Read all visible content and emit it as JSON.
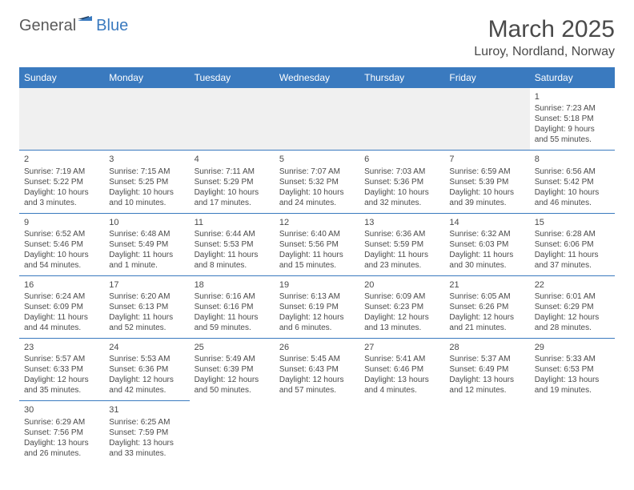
{
  "logo": {
    "part1": "General",
    "part2": "Blue"
  },
  "title": "March 2025",
  "location": "Luroy, Nordland, Norway",
  "colors": {
    "header_bg": "#3a7abf",
    "header_text": "#ffffff",
    "border": "#3a7abf",
    "text": "#4a4a4a",
    "empty_bg": "#f0f0f0",
    "page_bg": "#ffffff"
  },
  "typography": {
    "title_fontsize": 30,
    "location_fontsize": 16,
    "th_fontsize": 12,
    "cell_fontsize": 10,
    "daynum_fontsize": 11
  },
  "columns": [
    "Sunday",
    "Monday",
    "Tuesday",
    "Wednesday",
    "Thursday",
    "Friday",
    "Saturday"
  ],
  "weeks": [
    [
      null,
      null,
      null,
      null,
      null,
      null,
      {
        "day": "1",
        "sunrise": "Sunrise: 7:23 AM",
        "sunset": "Sunset: 5:18 PM",
        "daylight1": "Daylight: 9 hours",
        "daylight2": "and 55 minutes."
      }
    ],
    [
      {
        "day": "2",
        "sunrise": "Sunrise: 7:19 AM",
        "sunset": "Sunset: 5:22 PM",
        "daylight1": "Daylight: 10 hours",
        "daylight2": "and 3 minutes."
      },
      {
        "day": "3",
        "sunrise": "Sunrise: 7:15 AM",
        "sunset": "Sunset: 5:25 PM",
        "daylight1": "Daylight: 10 hours",
        "daylight2": "and 10 minutes."
      },
      {
        "day": "4",
        "sunrise": "Sunrise: 7:11 AM",
        "sunset": "Sunset: 5:29 PM",
        "daylight1": "Daylight: 10 hours",
        "daylight2": "and 17 minutes."
      },
      {
        "day": "5",
        "sunrise": "Sunrise: 7:07 AM",
        "sunset": "Sunset: 5:32 PM",
        "daylight1": "Daylight: 10 hours",
        "daylight2": "and 24 minutes."
      },
      {
        "day": "6",
        "sunrise": "Sunrise: 7:03 AM",
        "sunset": "Sunset: 5:36 PM",
        "daylight1": "Daylight: 10 hours",
        "daylight2": "and 32 minutes."
      },
      {
        "day": "7",
        "sunrise": "Sunrise: 6:59 AM",
        "sunset": "Sunset: 5:39 PM",
        "daylight1": "Daylight: 10 hours",
        "daylight2": "and 39 minutes."
      },
      {
        "day": "8",
        "sunrise": "Sunrise: 6:56 AM",
        "sunset": "Sunset: 5:42 PM",
        "daylight1": "Daylight: 10 hours",
        "daylight2": "and 46 minutes."
      }
    ],
    [
      {
        "day": "9",
        "sunrise": "Sunrise: 6:52 AM",
        "sunset": "Sunset: 5:46 PM",
        "daylight1": "Daylight: 10 hours",
        "daylight2": "and 54 minutes."
      },
      {
        "day": "10",
        "sunrise": "Sunrise: 6:48 AM",
        "sunset": "Sunset: 5:49 PM",
        "daylight1": "Daylight: 11 hours",
        "daylight2": "and 1 minute."
      },
      {
        "day": "11",
        "sunrise": "Sunrise: 6:44 AM",
        "sunset": "Sunset: 5:53 PM",
        "daylight1": "Daylight: 11 hours",
        "daylight2": "and 8 minutes."
      },
      {
        "day": "12",
        "sunrise": "Sunrise: 6:40 AM",
        "sunset": "Sunset: 5:56 PM",
        "daylight1": "Daylight: 11 hours",
        "daylight2": "and 15 minutes."
      },
      {
        "day": "13",
        "sunrise": "Sunrise: 6:36 AM",
        "sunset": "Sunset: 5:59 PM",
        "daylight1": "Daylight: 11 hours",
        "daylight2": "and 23 minutes."
      },
      {
        "day": "14",
        "sunrise": "Sunrise: 6:32 AM",
        "sunset": "Sunset: 6:03 PM",
        "daylight1": "Daylight: 11 hours",
        "daylight2": "and 30 minutes."
      },
      {
        "day": "15",
        "sunrise": "Sunrise: 6:28 AM",
        "sunset": "Sunset: 6:06 PM",
        "daylight1": "Daylight: 11 hours",
        "daylight2": "and 37 minutes."
      }
    ],
    [
      {
        "day": "16",
        "sunrise": "Sunrise: 6:24 AM",
        "sunset": "Sunset: 6:09 PM",
        "daylight1": "Daylight: 11 hours",
        "daylight2": "and 44 minutes."
      },
      {
        "day": "17",
        "sunrise": "Sunrise: 6:20 AM",
        "sunset": "Sunset: 6:13 PM",
        "daylight1": "Daylight: 11 hours",
        "daylight2": "and 52 minutes."
      },
      {
        "day": "18",
        "sunrise": "Sunrise: 6:16 AM",
        "sunset": "Sunset: 6:16 PM",
        "daylight1": "Daylight: 11 hours",
        "daylight2": "and 59 minutes."
      },
      {
        "day": "19",
        "sunrise": "Sunrise: 6:13 AM",
        "sunset": "Sunset: 6:19 PM",
        "daylight1": "Daylight: 12 hours",
        "daylight2": "and 6 minutes."
      },
      {
        "day": "20",
        "sunrise": "Sunrise: 6:09 AM",
        "sunset": "Sunset: 6:23 PM",
        "daylight1": "Daylight: 12 hours",
        "daylight2": "and 13 minutes."
      },
      {
        "day": "21",
        "sunrise": "Sunrise: 6:05 AM",
        "sunset": "Sunset: 6:26 PM",
        "daylight1": "Daylight: 12 hours",
        "daylight2": "and 21 minutes."
      },
      {
        "day": "22",
        "sunrise": "Sunrise: 6:01 AM",
        "sunset": "Sunset: 6:29 PM",
        "daylight1": "Daylight: 12 hours",
        "daylight2": "and 28 minutes."
      }
    ],
    [
      {
        "day": "23",
        "sunrise": "Sunrise: 5:57 AM",
        "sunset": "Sunset: 6:33 PM",
        "daylight1": "Daylight: 12 hours",
        "daylight2": "and 35 minutes."
      },
      {
        "day": "24",
        "sunrise": "Sunrise: 5:53 AM",
        "sunset": "Sunset: 6:36 PM",
        "daylight1": "Daylight: 12 hours",
        "daylight2": "and 42 minutes."
      },
      {
        "day": "25",
        "sunrise": "Sunrise: 5:49 AM",
        "sunset": "Sunset: 6:39 PM",
        "daylight1": "Daylight: 12 hours",
        "daylight2": "and 50 minutes."
      },
      {
        "day": "26",
        "sunrise": "Sunrise: 5:45 AM",
        "sunset": "Sunset: 6:43 PM",
        "daylight1": "Daylight: 12 hours",
        "daylight2": "and 57 minutes."
      },
      {
        "day": "27",
        "sunrise": "Sunrise: 5:41 AM",
        "sunset": "Sunset: 6:46 PM",
        "daylight1": "Daylight: 13 hours",
        "daylight2": "and 4 minutes."
      },
      {
        "day": "28",
        "sunrise": "Sunrise: 5:37 AM",
        "sunset": "Sunset: 6:49 PM",
        "daylight1": "Daylight: 13 hours",
        "daylight2": "and 12 minutes."
      },
      {
        "day": "29",
        "sunrise": "Sunrise: 5:33 AM",
        "sunset": "Sunset: 6:53 PM",
        "daylight1": "Daylight: 13 hours",
        "daylight2": "and 19 minutes."
      }
    ],
    [
      {
        "day": "30",
        "sunrise": "Sunrise: 6:29 AM",
        "sunset": "Sunset: 7:56 PM",
        "daylight1": "Daylight: 13 hours",
        "daylight2": "and 26 minutes."
      },
      {
        "day": "31",
        "sunrise": "Sunrise: 6:25 AM",
        "sunset": "Sunset: 7:59 PM",
        "daylight1": "Daylight: 13 hours",
        "daylight2": "and 33 minutes."
      },
      null,
      null,
      null,
      null,
      null
    ]
  ]
}
